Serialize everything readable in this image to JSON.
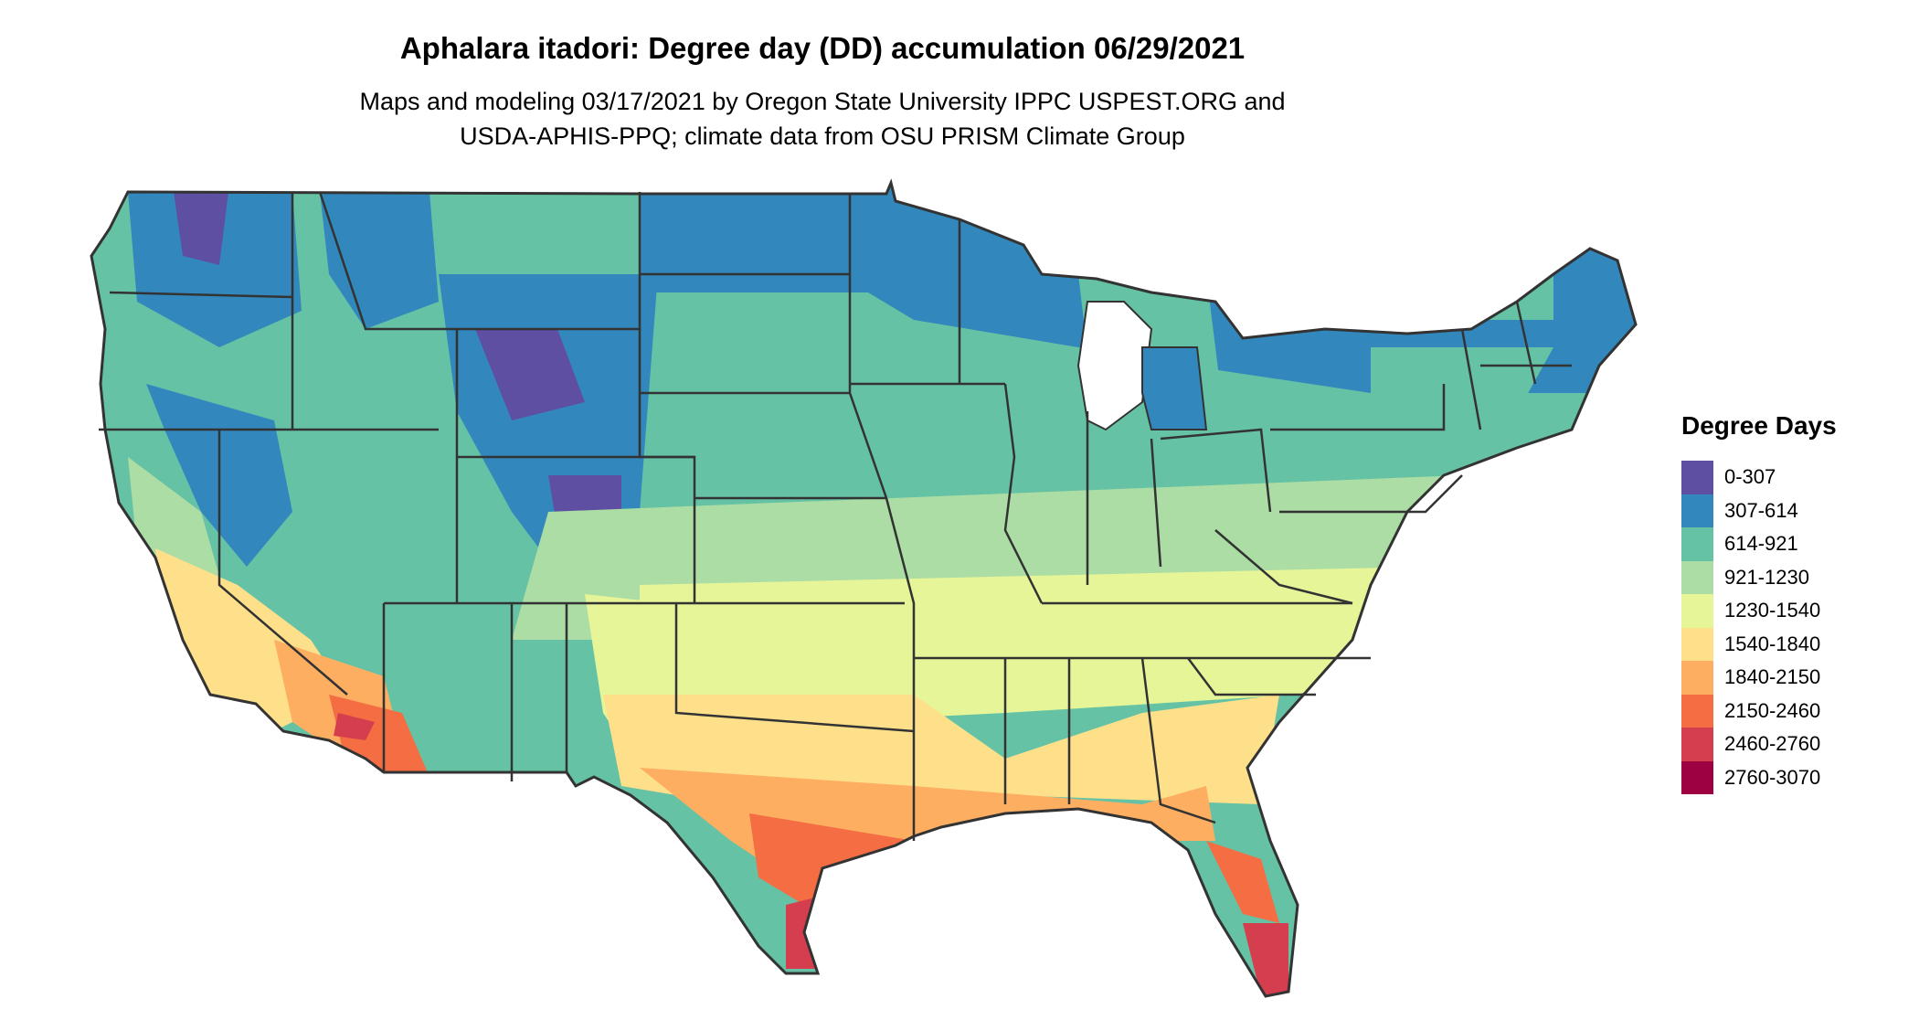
{
  "title": "Aphalara itadori: Degree day (DD) accumulation 06/29/2021",
  "subtitle_lines": [
    "Maps and modeling 03/17/2021 by Oregon State University IPPC USPEST.ORG and",
    "USDA-APHIS-PPQ; climate data from OSU PRISM Climate Group"
  ],
  "legend": {
    "title": "Degree Days",
    "items": [
      {
        "label": "0-307",
        "color": "#5e4fa2"
      },
      {
        "label": "307-614",
        "color": "#3288bd"
      },
      {
        "label": "614-921",
        "color": "#66c2a5"
      },
      {
        "label": "921-1230",
        "color": "#abdda4"
      },
      {
        "label": "1230-1540",
        "color": "#e6f598"
      },
      {
        "label": "1540-1840",
        "color": "#fee08b"
      },
      {
        "label": "1840-2150",
        "color": "#fdae61"
      },
      {
        "label": "2150-2460",
        "color": "#f46d43"
      },
      {
        "label": "2460-2760",
        "color": "#d53e4f"
      },
      {
        "label": "2760-3070",
        "color": "#9e0142"
      }
    ]
  }
}
